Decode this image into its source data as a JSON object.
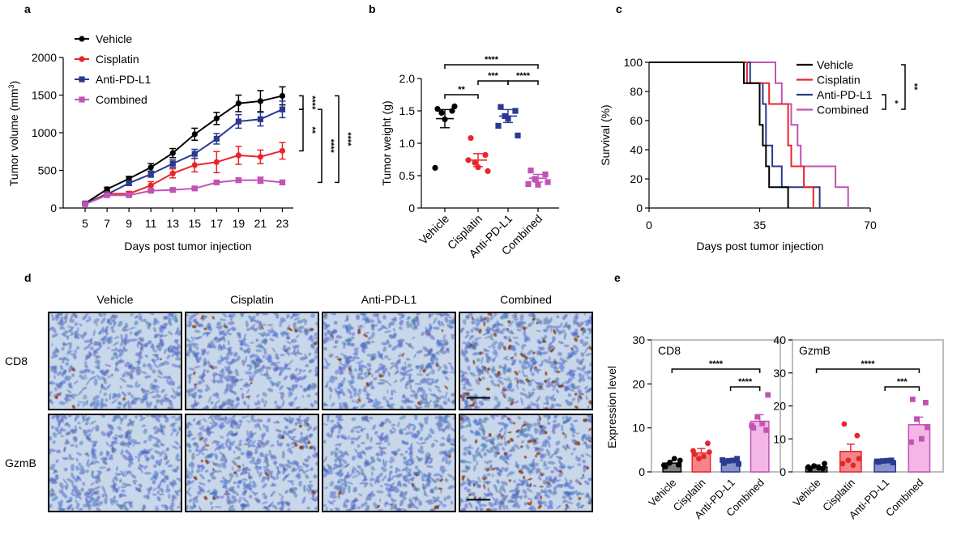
{
  "panels": {
    "a": "a",
    "b": "b",
    "c": "c",
    "d": "d",
    "e": "e"
  },
  "colors": {
    "vehicle": "#000000",
    "cisplatin": "#e8262a",
    "antipdl1": "#2b3990",
    "combined": "#c253b4",
    "combined_fill": "#f3b6e6",
    "vehicle_fill": "#808080",
    "cisplatin_fill": "#f4868a",
    "antipdl1_fill": "#8793c9"
  },
  "chart_data": [
    {
      "id": "a",
      "type": "line",
      "xlabel": "Days post tumor injection",
      "ylabel": "Tumor volume (mm",
      "ylabel_sup": "3",
      "ylabel_end": ")",
      "x": [
        5,
        7,
        9,
        11,
        13,
        15,
        17,
        19,
        21,
        23
      ],
      "xlim": [
        3,
        24
      ],
      "ylim": [
        0,
        2000
      ],
      "xticks": [
        "5",
        "7",
        "9",
        "11",
        "13",
        "15",
        "17",
        "19",
        "21",
        "23"
      ],
      "yticks": [
        "0",
        "500",
        "1000",
        "1500",
        "2000"
      ],
      "legend_position": "top-left",
      "series": [
        {
          "name": "Vehicle",
          "values": [
            60,
            250,
            390,
            540,
            730,
            980,
            1190,
            1390,
            1420,
            1490
          ],
          "err": [
            15,
            25,
            30,
            50,
            60,
            80,
            80,
            110,
            140,
            120
          ]
        },
        {
          "name": "Cisplatin",
          "values": [
            55,
            190,
            190,
            300,
            460,
            570,
            610,
            700,
            680,
            760
          ],
          "err": [
            10,
            20,
            30,
            50,
            60,
            90,
            140,
            120,
            90,
            110
          ]
        },
        {
          "name": "Anti-PD-L1",
          "values": [
            60,
            180,
            330,
            450,
            590,
            720,
            920,
            1150,
            1180,
            1310
          ],
          "err": [
            10,
            20,
            30,
            40,
            50,
            60,
            70,
            90,
            90,
            110
          ]
        },
        {
          "name": "Combined",
          "values": [
            50,
            170,
            170,
            230,
            240,
            260,
            340,
            370,
            370,
            340
          ],
          "err": [
            10,
            20,
            20,
            20,
            20,
            20,
            20,
            30,
            40,
            30
          ]
        }
      ],
      "significance": [
        {
          "label": "****",
          "pair": [
            "Vehicle",
            "Anti-PD-L1"
          ]
        },
        {
          "label": "**",
          "pair": [
            "Anti-PD-L1",
            "Cisplatin"
          ]
        },
        {
          "label": "****",
          "pair": [
            "Anti-PD-L1",
            "Combined"
          ]
        },
        {
          "label": "****",
          "pair": [
            "Vehicle",
            "Combined"
          ]
        }
      ]
    },
    {
      "id": "b",
      "type": "scatter",
      "ylabel": "Tumor weight (g)",
      "categories": [
        "Vehicle",
        "Cisplatin",
        "Anti-PD-L1",
        "Combined"
      ],
      "ylim": [
        0,
        2.0
      ],
      "yticks": [
        "0",
        "0.5",
        "1.0",
        "1.5",
        "2.0"
      ],
      "means": [
        1.38,
        0.74,
        1.42,
        0.46
      ],
      "sem": [
        0.14,
        0.1,
        0.1,
        0.06
      ],
      "points": [
        [
          1.53,
          1.5,
          1.47,
          1.57,
          1.37,
          0.62
        ],
        [
          1.08,
          0.82,
          0.7,
          0.57,
          0.63,
          0.74
        ],
        [
          1.56,
          1.5,
          1.42,
          1.12,
          1.38,
          1.27
        ],
        [
          0.58,
          0.52,
          0.45,
          0.4,
          0.36,
          0.37
        ]
      ],
      "significance": [
        {
          "label": "**",
          "pair": [
            0,
            1
          ]
        },
        {
          "label": "***",
          "pair": [
            1,
            2
          ]
        },
        {
          "label": "****",
          "pair": [
            2,
            3
          ]
        },
        {
          "label": "****",
          "pair": [
            0,
            3
          ]
        }
      ]
    },
    {
      "id": "c",
      "type": "line",
      "xlabel": "Days post tumor injection",
      "ylabel": "Survival (%)",
      "xlim": [
        0,
        70
      ],
      "ylim": [
        0,
        100
      ],
      "xticks": [
        "0",
        "35",
        "70"
      ],
      "yticks": [
        "0",
        "20",
        "40",
        "60",
        "80",
        "100"
      ],
      "legend_position": "top-right",
      "series": [
        {
          "name": "Vehicle",
          "steps": [
            [
              0,
              100
            ],
            [
              30,
              100
            ],
            [
              30,
              85.7
            ],
            [
              35,
              85.7
            ],
            [
              35,
              57.1
            ],
            [
              36,
              57.1
            ],
            [
              36,
              42.9
            ],
            [
              37,
              42.9
            ],
            [
              37,
              28.6
            ],
            [
              38,
              28.6
            ],
            [
              38,
              14.3
            ],
            [
              44,
              14.3
            ],
            [
              44,
              0
            ]
          ]
        },
        {
          "name": "Cisplatin",
          "steps": [
            [
              0,
              100
            ],
            [
              31,
              100
            ],
            [
              31,
              85.7
            ],
            [
              38,
              85.7
            ],
            [
              38,
              71.4
            ],
            [
              44,
              71.4
            ],
            [
              44,
              42.9
            ],
            [
              45,
              42.9
            ],
            [
              45,
              28.6
            ],
            [
              49,
              28.6
            ],
            [
              49,
              14.3
            ],
            [
              52,
              14.3
            ],
            [
              52,
              0
            ]
          ]
        },
        {
          "name": "Anti-PD-L1",
          "steps": [
            [
              0,
              100
            ],
            [
              32,
              100
            ],
            [
              32,
              85.7
            ],
            [
              36,
              85.7
            ],
            [
              36,
              71.4
            ],
            [
              37,
              71.4
            ],
            [
              37,
              42.9
            ],
            [
              39,
              42.9
            ],
            [
              39,
              28.6
            ],
            [
              42,
              28.6
            ],
            [
              42,
              14.3
            ],
            [
              54,
              14.3
            ],
            [
              54,
              0
            ]
          ]
        },
        {
          "name": "Combined",
          "steps": [
            [
              0,
              100
            ],
            [
              40,
              100
            ],
            [
              40,
              85.7
            ],
            [
              42,
              85.7
            ],
            [
              42,
              71.4
            ],
            [
              45,
              71.4
            ],
            [
              45,
              57.1
            ],
            [
              47,
              57.1
            ],
            [
              47,
              42.9
            ],
            [
              48,
              42.9
            ],
            [
              48,
              28.6
            ],
            [
              59,
              28.6
            ],
            [
              59,
              14.3
            ],
            [
              63,
              14.3
            ],
            [
              63,
              0
            ]
          ]
        }
      ],
      "significance": [
        {
          "label": "**",
          "pair": [
            "Vehicle",
            "Combined"
          ]
        },
        {
          "label": "*",
          "pair": [
            "Anti-PD-L1",
            "Combined"
          ]
        }
      ]
    },
    {
      "id": "e1",
      "type": "bar",
      "title": "CD8",
      "ylabel": "Expression level",
      "categories": [
        "Vehicle",
        "Cisplatin",
        "Anti-PD-L1",
        "Combined"
      ],
      "values": [
        2.0,
        4.3,
        2.4,
        11.5
      ],
      "sem": [
        0.6,
        1.0,
        0.5,
        1.5
      ],
      "ylim": [
        0,
        30
      ],
      "yticks": [
        "0",
        "10",
        "20",
        "30"
      ],
      "points": [
        [
          1.2,
          1.6,
          2.0,
          2.6,
          3.0,
          1.5
        ],
        [
          4.0,
          6.5,
          3.0,
          4.5,
          3.5,
          4.8
        ],
        [
          2.0,
          3.0,
          2.5,
          1.8,
          2.6,
          2.7
        ],
        [
          10.0,
          9.5,
          12.5,
          17.5,
          11.0,
          10.5
        ]
      ],
      "significance": [
        {
          "label": "****",
          "pair": [
            0,
            3
          ]
        },
        {
          "label": "****",
          "pair": [
            2,
            3
          ]
        }
      ]
    },
    {
      "id": "e2",
      "type": "bar",
      "title": "GzmB",
      "categories": [
        "Vehicle",
        "Cisplatin",
        "Anti-PD-L1",
        "Combined"
      ],
      "values": [
        1.5,
        6.2,
        3.2,
        14.3
      ],
      "sem": [
        0.6,
        2.2,
        0.4,
        2.3
      ],
      "ylim": [
        0,
        40
      ],
      "yticks": [
        "0",
        "10",
        "20",
        "30",
        "40"
      ],
      "points": [
        [
          0.8,
          1.0,
          1.8,
          2.5,
          1.2,
          1.5
        ],
        [
          14.5,
          11.0,
          3.5,
          4.0,
          2.0,
          2.5
        ],
        [
          3.0,
          3.5,
          3.3,
          2.8,
          3.4,
          3.2
        ],
        [
          22.0,
          21.0,
          16.0,
          13.5,
          10.0,
          9.0
        ]
      ],
      "significance": [
        {
          "label": "****",
          "pair": [
            0,
            3
          ]
        },
        {
          "label": "***",
          "pair": [
            2,
            3
          ]
        }
      ]
    }
  ],
  "ihc": {
    "columns": [
      "Vehicle",
      "Cisplatin",
      "Anti-PD-L1",
      "Combined"
    ],
    "rows": [
      "CD8",
      "GzmB"
    ],
    "stain_density": [
      [
        0.02,
        0.05,
        0.05,
        0.22
      ],
      [
        0.0,
        0.07,
        0.03,
        0.2
      ]
    ]
  }
}
